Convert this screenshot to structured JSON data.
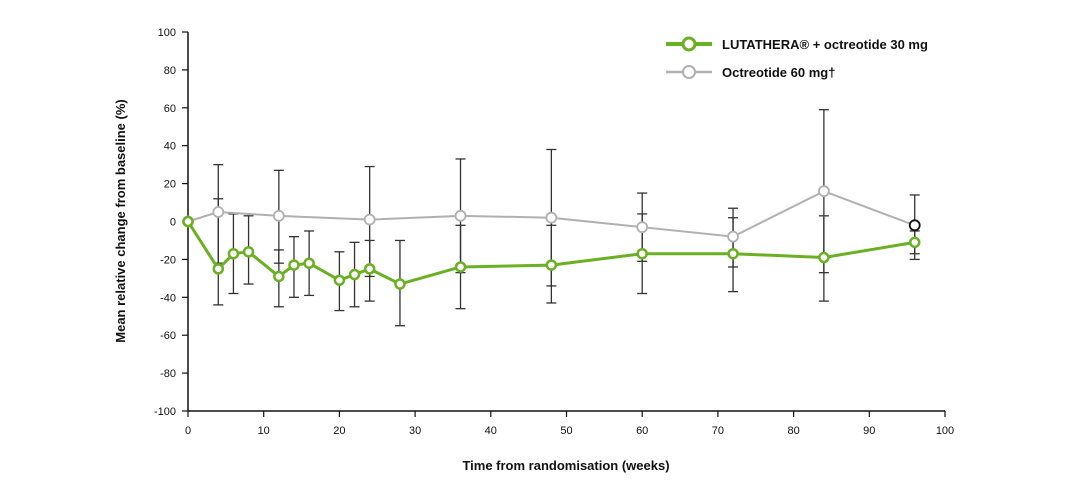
{
  "chart_data": {
    "type": "line",
    "xlabel": "Time from randomisation (weeks)",
    "ylabel": "Mean relative change from baseline (%)",
    "xlim": [
      0,
      100
    ],
    "ylim": [
      -100,
      100
    ],
    "xticks": [
      0,
      10,
      20,
      30,
      40,
      50,
      60,
      70,
      80,
      90,
      100
    ],
    "yticks": [
      100,
      80,
      60,
      40,
      20,
      0,
      -20,
      -40,
      -60,
      -80,
      -100
    ],
    "grid": false,
    "legend_position": "top-right",
    "series": [
      {
        "name": "LUTATHERA® + octreotide 30 mg",
        "color": "#6ab023",
        "x": [
          0,
          4,
          6,
          8,
          12,
          14,
          16,
          20,
          22,
          24,
          28,
          36,
          48,
          60,
          72,
          84,
          96
        ],
        "y": [
          0,
          -25,
          -17,
          -16,
          -29,
          -23,
          -22,
          -31,
          -28,
          -25,
          -33,
          -24,
          -23,
          -17,
          -17,
          -19,
          -11
        ],
        "err_upper": [
          null,
          12,
          4,
          3,
          -15,
          -8,
          -5,
          -16,
          -11,
          -10,
          -10,
          -2,
          -2,
          4,
          2,
          3,
          -5
        ],
        "err_lower": [
          null,
          -44,
          -38,
          -33,
          -45,
          -40,
          -39,
          -47,
          -45,
          -42,
          -55,
          -46,
          -43,
          -38,
          -37,
          -42,
          -20
        ]
      },
      {
        "name": "Octreotide 60 mg†",
        "color": "#b0b0b0",
        "x": [
          0,
          4,
          12,
          24,
          36,
          48,
          60,
          72,
          84,
          96
        ],
        "y": [
          0,
          5,
          3,
          1,
          3,
          2,
          -3,
          -8,
          16,
          -2
        ],
        "err_upper": [
          null,
          30,
          27,
          29,
          33,
          38,
          15,
          7,
          59,
          14
        ],
        "err_lower": [
          null,
          -22,
          -22,
          -29,
          -27,
          -34,
          -21,
          -24,
          -27,
          -17
        ]
      }
    ]
  }
}
